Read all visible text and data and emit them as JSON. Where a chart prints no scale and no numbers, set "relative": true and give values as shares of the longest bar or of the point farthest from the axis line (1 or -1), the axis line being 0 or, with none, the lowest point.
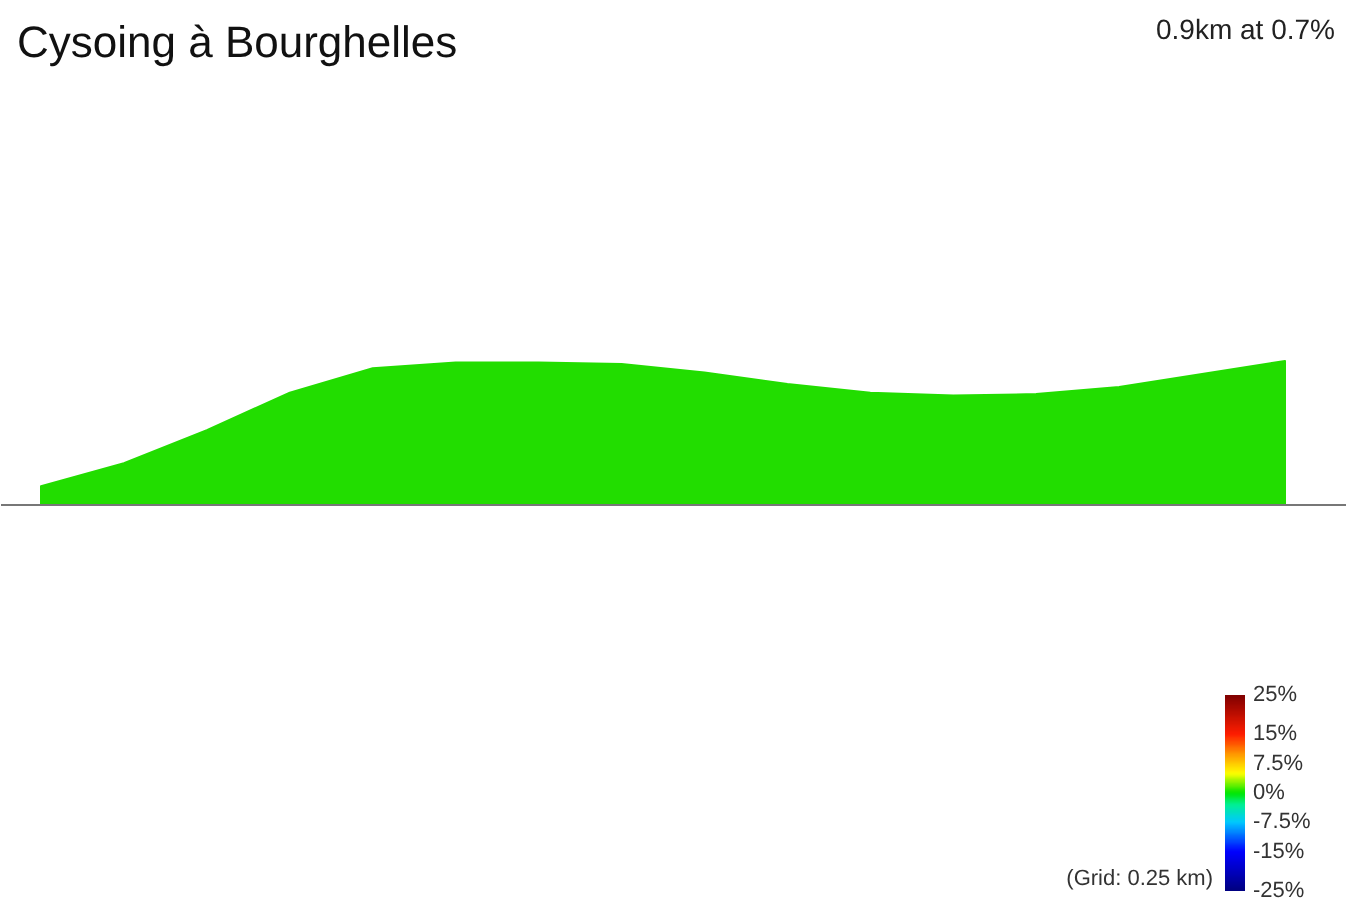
{
  "chart_data": {
    "type": "area",
    "title": "Cysoing à Bourghelles",
    "subtitle": "0.9km at 0.7%",
    "annotations": [
      "(Grid: 0.25 km)"
    ],
    "categories": [
      null,
      null,
      null,
      null,
      null,
      null,
      null,
      null,
      null,
      null,
      null,
      null,
      null,
      null,
      null,
      null
    ],
    "relative": true,
    "color": "#22dd00",
    "values": [
      0.13,
      0.29,
      0.52,
      0.78,
      0.95,
      0.99,
      0.99,
      0.98,
      0.92,
      0.84,
      0.78,
      0.76,
      0.77,
      0.82,
      0.91,
      1
    ],
    "clim": [
      -25,
      25
    ],
    "cticks": [
      {
        "value": 25,
        "label": "25%"
      },
      {
        "value": 15,
        "label": "15%"
      },
      {
        "value": 7.5,
        "label": "7.5%"
      },
      {
        "value": 0,
        "label": "0%"
      },
      {
        "value": -7.5,
        "label": "-7.5%"
      },
      {
        "value": -15,
        "label": "-15%"
      },
      {
        "value": -25,
        "label": "-25%"
      }
    ]
  }
}
